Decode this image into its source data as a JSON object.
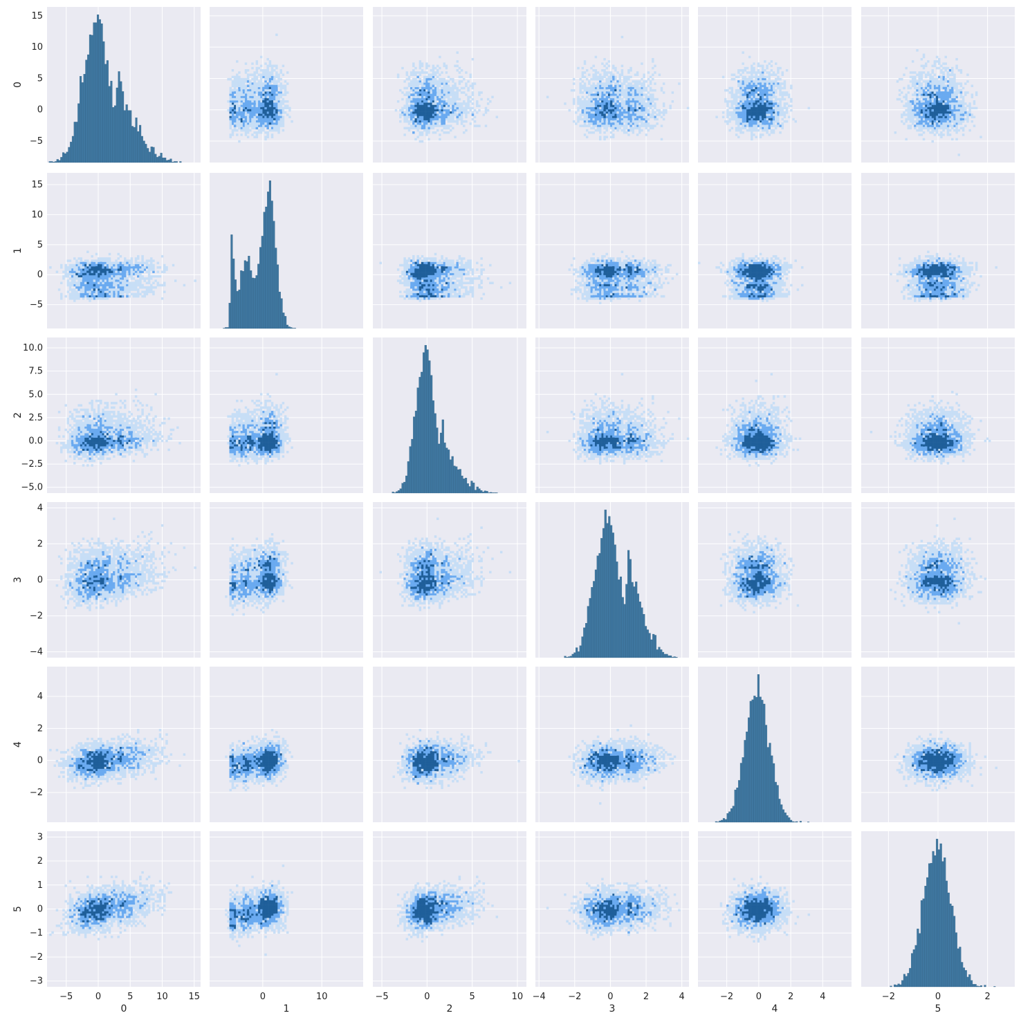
{
  "chart_data": {
    "type": "pairplot",
    "description_of_layout": "6x6 grid: diagonal cells are histograms, off-diagonal cells are 2D density histograms",
    "variables": [
      "0",
      "1",
      "2",
      "3",
      "4",
      "5"
    ],
    "grid": true,
    "background_color": "#eaeaf2",
    "colors": {
      "histogram_bar": "#3f77a0",
      "density_light": "#c7def6",
      "density_mid": "#6aaaf0",
      "density_dark": "#1f5f9a"
    },
    "variable_info": [
      {
        "name": "0",
        "range": [
          -7.5,
          15.5
        ],
        "ticks": [
          -5,
          0,
          5,
          10,
          15
        ],
        "ticklabels": [
          "−5",
          "0",
          "5",
          "10",
          "15"
        ],
        "dist": "rightskew",
        "xlim": [
          -8,
          16
        ]
      },
      {
        "name": "1",
        "range": [
          -8,
          16
        ],
        "ticks": [
          -5,
          0,
          5,
          10,
          15
        ],
        "ticklabels": [
          "−5",
          "0",
          "5",
          "10",
          "15"
        ],
        "xticks": [
          0,
          10
        ],
        "xticklabels": [
          "0",
          "10"
        ],
        "dist": "bimodal_left",
        "xlim": [
          -9,
          17
        ]
      },
      {
        "name": "2",
        "range": [
          -5,
          10.5
        ],
        "ticks": [
          -5.0,
          -2.5,
          0.0,
          2.5,
          5.0,
          7.5,
          10.0
        ],
        "ticklabels": [
          "−5.0",
          "−2.5",
          "0.0",
          "2.5",
          "5.0",
          "7.5",
          "10.0"
        ],
        "xticks": [
          -5,
          0,
          5,
          10
        ],
        "xticklabels": [
          "−5",
          "0",
          "5",
          "10"
        ],
        "dist": "rightskew",
        "xlim": [
          -6,
          11
        ]
      },
      {
        "name": "3",
        "range": [
          -4,
          4
        ],
        "ticks": [
          -4,
          -2,
          0,
          2,
          4
        ],
        "ticklabels": [
          "−4",
          "−2",
          "0",
          "2",
          "4"
        ],
        "dist": "normal_shoulder",
        "xlim": [
          -4.2,
          4.4
        ]
      },
      {
        "name": "4",
        "range": [
          -3.5,
          5.5
        ],
        "ticks": [
          -2,
          0,
          2,
          4
        ],
        "ticklabels": [
          "−2",
          "0",
          "2",
          "4"
        ],
        "dist": "normal",
        "xlim": [
          -3.8,
          5.8
        ]
      },
      {
        "name": "5",
        "range": [
          -3,
          3
        ],
        "ticks": [
          -3,
          -2,
          -1,
          0,
          1,
          2,
          3
        ],
        "ticklabels": [
          "−3",
          "−2",
          "−1",
          "0",
          "1",
          "2",
          "3"
        ],
        "xticks": [
          -2,
          0,
          2
        ],
        "xticklabels": [
          "−2",
          "0",
          "2"
        ],
        "dist": "normal",
        "xlim": [
          -3.1,
          3.1
        ]
      }
    ]
  }
}
